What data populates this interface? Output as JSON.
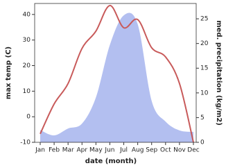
{
  "chart_data": {
    "type": "area-line",
    "x_label": "date (month)",
    "y_label": "max temp (C)",
    "y2_label": "med. precipitation (kg/m2)",
    "categories": [
      "Jan",
      "Feb",
      "Mar",
      "Apr",
      "May",
      "Jun",
      "Jul",
      "Aug",
      "Sep",
      "Oct",
      "Nov",
      "Dec"
    ],
    "series": [
      {
        "name": "med. precipitation",
        "color": "#b3bff0",
        "axis": "y2",
        "kind": "area",
        "values": [
          2.5,
          1.4,
          2.8,
          3.8,
          9.1,
          19.7,
          25.7,
          23.9,
          8.4,
          4.2,
          2.4,
          2.1
        ]
      },
      {
        "name": "max temp",
        "color": "#c85a5a",
        "axis": "y",
        "kind": "line",
        "values": [
          -6.7,
          5,
          13,
          26.7,
          33.5,
          43.5,
          34.8,
          38,
          27,
          23.4,
          13,
          -10
        ]
      }
    ],
    "ylim": [
      -10,
      44.3
    ],
    "yticks": [
      -10,
      0,
      10,
      20,
      30,
      40
    ],
    "y2lim": [
      0,
      28.1
    ],
    "y2ticks": [
      0,
      5,
      10,
      15,
      20,
      25
    ]
  }
}
